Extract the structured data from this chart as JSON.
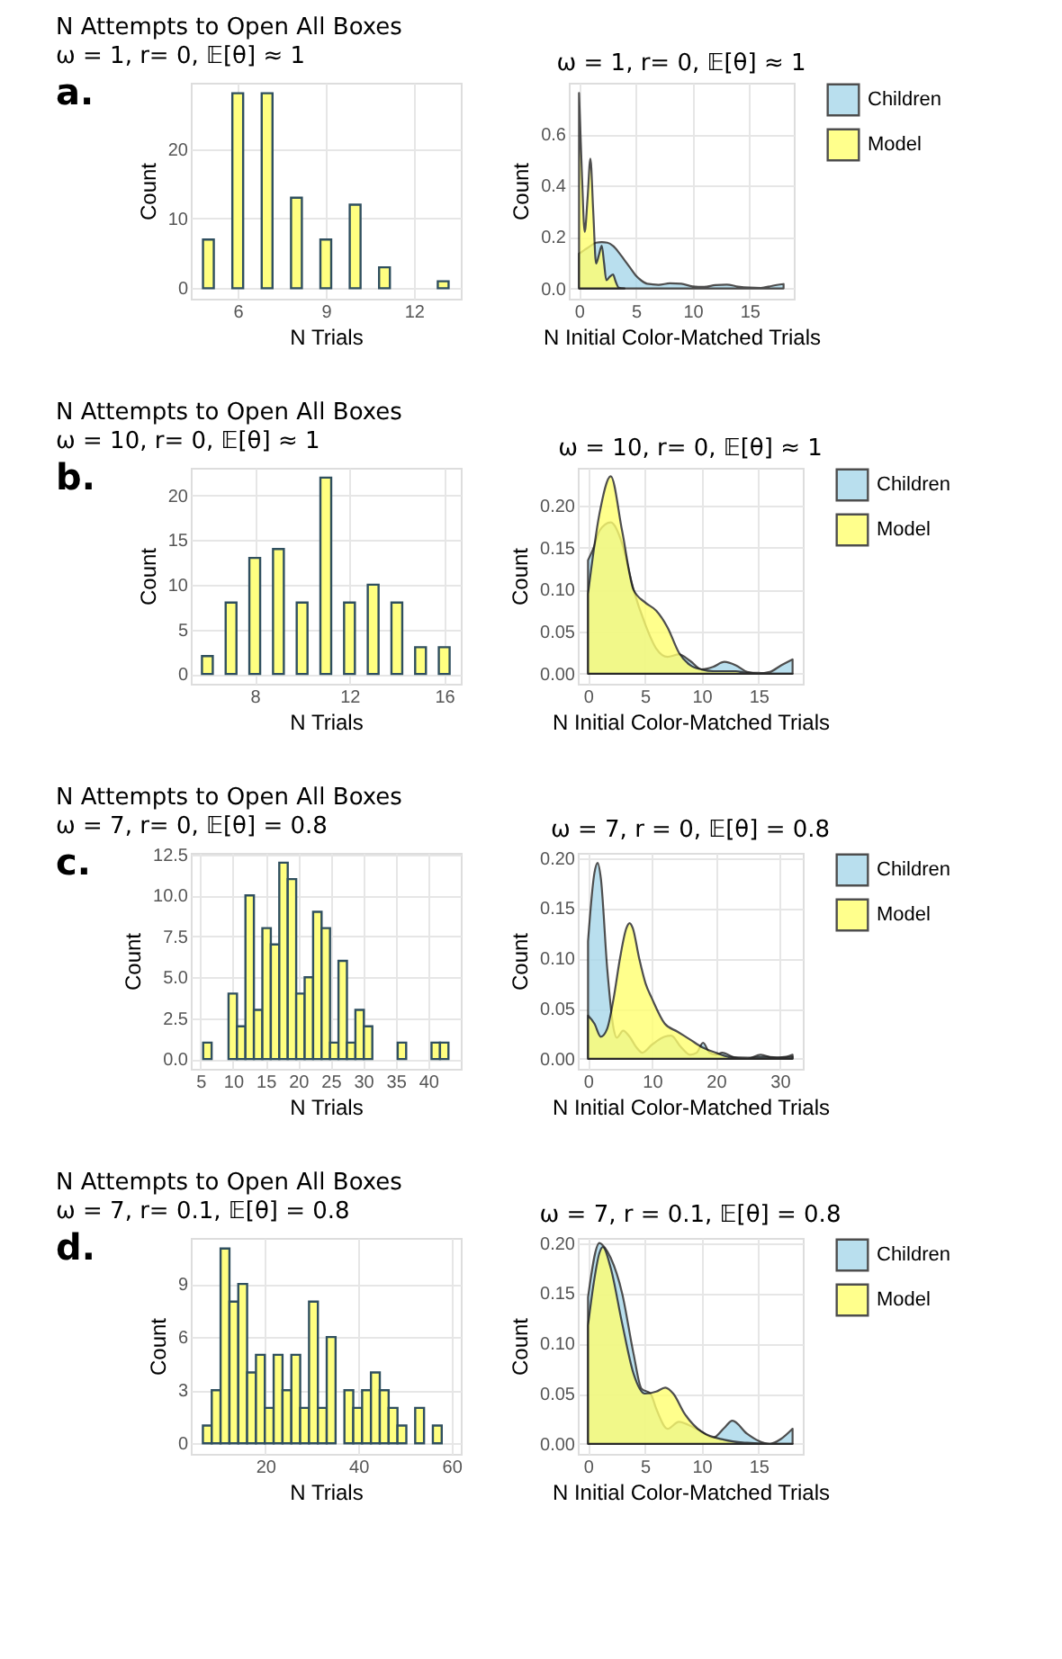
{
  "chart_data": [
    {
      "type": "bar",
      "title": "N Attempts to Open All Boxes",
      "subtitle": "ω = 1, r= 0, 𝔼[θ] ≈ 1",
      "xlabel": "N Trials",
      "ylabel": "Count",
      "annotations": [
        "a."
      ],
      "color": "#ffff80",
      "x": [
        5,
        6,
        7,
        8,
        9,
        10,
        11,
        13
      ],
      "values": [
        7,
        28,
        28,
        13,
        7,
        12,
        3,
        1
      ],
      "xlim": [
        4.4,
        13.6
      ],
      "xticks": [
        6,
        9,
        12
      ],
      "ylim": [
        -1.5,
        29.5
      ],
      "yticks": [
        0,
        10,
        20
      ],
      "grid": true
    },
    {
      "type": "area",
      "title": "ω = 1, r= 0, 𝔼[θ] ≈ 1",
      "xlabel": "N Initial Color-Matched Trials",
      "ylabel": "Count",
      "legend": "right",
      "grid": true,
      "xlim": [
        -0.9,
        18.9
      ],
      "xticks": [
        0,
        5,
        10,
        15
      ],
      "ylim": [
        -0.04,
        0.8
      ],
      "yticks": [
        {
          "value": 0,
          "label": "0.0"
        },
        0.2,
        0.4,
        0.6
      ],
      "series": [
        {
          "name": "Children",
          "color": "#a8d8ea",
          "x": [
            0,
            0.5,
            1,
            1.5,
            2,
            2.5,
            3,
            3.5,
            4,
            4.5,
            5,
            5.5,
            6,
            7,
            8,
            9,
            10,
            11,
            12,
            13,
            14,
            15,
            16,
            17,
            18
          ],
          "values": [
            0.135,
            0.15,
            0.165,
            0.178,
            0.18,
            0.178,
            0.165,
            0.14,
            0.11,
            0.08,
            0.05,
            0.03,
            0.018,
            0.014,
            0.02,
            0.018,
            0.008,
            0.006,
            0.013,
            0.015,
            0.007,
            0.003,
            0.002,
            0.01,
            0.017
          ]
        },
        {
          "name": "Model",
          "color": "#ffff70",
          "x": [
            0,
            0.25,
            0.5,
            0.75,
            1,
            1.25,
            1.5,
            1.75,
            2,
            2.2,
            2.4,
            2.7,
            3,
            3.2,
            3.5,
            4
          ],
          "values": [
            0.76,
            0.45,
            0.22,
            0.35,
            0.505,
            0.3,
            0.097,
            0.13,
            0.166,
            0.1,
            0.032,
            0.045,
            0.054,
            0.03,
            0.003,
            0
          ]
        }
      ]
    },
    {
      "type": "bar",
      "title": "N Attempts to Open All Boxes",
      "subtitle": "ω = 10, r= 0, 𝔼[θ] ≈ 1",
      "xlabel": "N Trials",
      "ylabel": "Count",
      "annotations": [
        "b."
      ],
      "color": "#ffff80",
      "x": [
        6,
        7,
        8,
        9,
        10,
        11,
        12,
        13,
        14,
        15,
        16
      ],
      "values": [
        2,
        8,
        13,
        14,
        8,
        22,
        8,
        10,
        8,
        3,
        3
      ],
      "xlim": [
        5.3,
        16.7
      ],
      "xticks": [
        8,
        12,
        16
      ],
      "ylim": [
        -1.1,
        23.1
      ],
      "yticks": [
        0,
        5,
        10,
        15,
        20
      ],
      "grid": true
    },
    {
      "type": "area",
      "title": "ω = 10, r= 0, 𝔼[θ] ≈ 1",
      "xlabel": "N Initial Color-Matched Trials",
      "ylabel": "Count",
      "legend": "right",
      "grid": true,
      "xlim": [
        -0.9,
        18.9
      ],
      "xticks": [
        0,
        5,
        10,
        15
      ],
      "ylim": [
        -0.012,
        0.245
      ],
      "yticks": [
        {
          "value": 0,
          "label": "0.00"
        },
        0.05,
        {
          "value": 0.1,
          "label": "0.10"
        },
        0.15,
        {
          "value": 0.2,
          "label": "0.20"
        }
      ],
      "series": [
        {
          "name": "Children",
          "color": "#a8d8ea",
          "x": [
            0,
            0.5,
            1,
            2,
            3,
            4,
            5,
            6,
            7,
            8,
            9,
            10,
            11,
            12,
            13,
            14,
            15,
            16,
            17,
            18
          ],
          "values": [
            0.135,
            0.15,
            0.17,
            0.18,
            0.155,
            0.1,
            0.06,
            0.03,
            0.02,
            0.023,
            0.015,
            0.005,
            0.008,
            0.014,
            0.01,
            0.002,
            0,
            0.002,
            0.01,
            0.017
          ]
        },
        {
          "name": "Model",
          "color": "#ffff70",
          "x": [
            0,
            1,
            2,
            3,
            4,
            5,
            6,
            7,
            8,
            9,
            10,
            11,
            12,
            13,
            14,
            15,
            16,
            17,
            18
          ],
          "values": [
            0.095,
            0.19,
            0.235,
            0.17,
            0.1,
            0.085,
            0.075,
            0.055,
            0.025,
            0.01,
            0.005,
            0.003,
            0.003,
            0.003,
            0.001,
            0.001,
            0,
            0,
            0
          ]
        }
      ]
    },
    {
      "type": "histogram",
      "title": "N Attempts to Open All Boxes",
      "subtitle": "ω = 7, r= 0, 𝔼[θ] = 0.8",
      "xlabel": "N Trials",
      "ylabel": "Count",
      "annotations": [
        "c."
      ],
      "color": "#ffff80",
      "bins": [
        5.4,
        6.7,
        8.0,
        9.3,
        10.6,
        11.9,
        13.2,
        14.5,
        15.8,
        17.1,
        18.4,
        19.7,
        21.0,
        22.3,
        23.6,
        24.9,
        26.2,
        27.5,
        28.8,
        30.1,
        31.4,
        32.7,
        34.0,
        35.3,
        36.6,
        37.9,
        39.2,
        40.5,
        41.8,
        43.1
      ],
      "values": [
        1,
        0,
        0,
        4,
        2,
        10,
        3,
        8,
        7,
        12,
        11,
        4,
        5,
        9,
        8,
        1,
        6,
        1,
        3,
        2,
        0,
        0,
        0,
        1,
        0,
        0,
        0,
        1,
        1
      ],
      "xlim": [
        3.5,
        45
      ],
      "xticks": [
        5,
        10,
        15,
        20,
        25,
        30,
        35,
        40
      ],
      "ylim": [
        -0.6,
        12.6
      ],
      "yticks": [
        {
          "value": 0,
          "label": "0.0"
        },
        2.5,
        {
          "value": 5,
          "label": "5.0"
        },
        7.5,
        {
          "value": 10,
          "label": "10.0"
        },
        12.5
      ],
      "grid": true
    },
    {
      "type": "area",
      "title": "ω = 7, r = 0, 𝔼[θ] = 0.8",
      "xlabel": "N Initial Color-Matched Trials",
      "ylabel": "Count",
      "legend": "right",
      "grid": true,
      "xlim": [
        -1.6,
        33.6
      ],
      "xticks": [
        0,
        10,
        20,
        30
      ],
      "ylim": [
        -0.01,
        0.205
      ],
      "yticks": [
        {
          "value": 0,
          "label": "0.00"
        },
        0.05,
        {
          "value": 0.1,
          "label": "0.10"
        },
        0.15,
        {
          "value": 0.2,
          "label": "0.20"
        }
      ],
      "series": [
        {
          "name": "Children",
          "color": "#a8d8ea",
          "x": [
            0,
            1,
            1.5,
            2,
            3,
            4,
            4.5,
            5.5,
            6.5,
            7.5,
            8.5,
            10,
            12,
            13,
            14.5,
            16,
            17,
            18,
            19,
            20,
            21,
            23,
            25,
            27,
            29,
            31,
            32
          ],
          "values": [
            0.117,
            0.185,
            0.195,
            0.18,
            0.09,
            0.03,
            0.021,
            0.028,
            0.022,
            0.012,
            0.006,
            0.014,
            0.022,
            0.023,
            0.012,
            0.004,
            0.006,
            0.016,
            0.006,
            0.004,
            0.006,
            0.001,
            0,
            0.004,
            0.001,
            0.002,
            0.004
          ]
        },
        {
          "name": "Model",
          "color": "#ffff70",
          "x": [
            0,
            1,
            2,
            3,
            4,
            5,
            6,
            6.5,
            7,
            8,
            9,
            10,
            12,
            14,
            16,
            18,
            20,
            22,
            25,
            28,
            30,
            32
          ],
          "values": [
            0.043,
            0.035,
            0.022,
            0.03,
            0.06,
            0.1,
            0.13,
            0.135,
            0.13,
            0.1,
            0.075,
            0.06,
            0.035,
            0.027,
            0.019,
            0.011,
            0.006,
            0.002,
            0.001,
            0.002,
            0.001,
            0.002
          ]
        }
      ]
    },
    {
      "type": "histogram",
      "title": "N Attempts to Open All Boxes",
      "subtitle": "ω = 7, r= 0.1, 𝔼[θ] = 0.8",
      "xlabel": "N Trials",
      "ylabel": "Count",
      "annotations": [
        "d."
      ],
      "color": "#ffff80",
      "bins": [
        6.6,
        8.5,
        10.4,
        12.3,
        14.2,
        16.1,
        18.0,
        19.9,
        21.8,
        23.7,
        25.6,
        27.5,
        29.4,
        31.3,
        33.2,
        35.1,
        37.0,
        38.9,
        40.8,
        42.7,
        44.6,
        46.5,
        48.4,
        50.3,
        52.2,
        54.1,
        56.0,
        57.9
      ],
      "values": [
        1,
        3,
        11,
        8,
        9,
        4,
        5,
        2,
        5,
        3,
        5,
        2,
        8,
        2,
        6,
        0,
        3,
        2,
        3,
        4,
        3,
        2,
        1,
        0,
        2,
        0,
        1
      ],
      "xlim": [
        4,
        62
      ],
      "xticks": [
        20,
        40,
        60
      ],
      "ylim": [
        -0.6,
        11.6
      ],
      "yticks": [
        0,
        3,
        6,
        9
      ],
      "grid": true
    },
    {
      "type": "area",
      "title": "ω = 7, r = 0.1, 𝔼[θ] = 0.8",
      "xlabel": "N Initial Color-Matched Trials",
      "ylabel": "Count",
      "legend": "right",
      "grid": true,
      "xlim": [
        -0.9,
        18.9
      ],
      "xticks": [
        0,
        5,
        10,
        15
      ],
      "ylim": [
        -0.01,
        0.205
      ],
      "yticks": [
        {
          "value": 0,
          "label": "0.00"
        },
        0.05,
        {
          "value": 0.1,
          "label": "0.10"
        },
        0.15,
        {
          "value": 0.2,
          "label": "0.20"
        }
      ],
      "series": [
        {
          "name": "Children",
          "color": "#a8d8ea",
          "x": [
            0,
            1,
            1.5,
            2,
            3,
            4,
            4.7,
            5.5,
            6,
            7,
            8,
            9,
            10,
            11,
            12,
            12.7,
            14,
            15,
            16,
            17,
            18
          ],
          "values": [
            0.146,
            0.2,
            0.195,
            0.185,
            0.15,
            0.09,
            0.055,
            0.05,
            0.035,
            0.015,
            0.022,
            0.018,
            0.012,
            0.006,
            0.016,
            0.023,
            0.01,
            0.003,
            0,
            0.005,
            0.015
          ]
        },
        {
          "name": "Model",
          "color": "#ffff70",
          "x": [
            0,
            0.5,
            1,
            1.3,
            2,
            3,
            4,
            5,
            6,
            6.8,
            7.5,
            8.5,
            10,
            12,
            14,
            16,
            18
          ],
          "values": [
            0.118,
            0.16,
            0.19,
            0.196,
            0.175,
            0.12,
            0.07,
            0.05,
            0.052,
            0.056,
            0.05,
            0.03,
            0.012,
            0.004,
            0.001,
            0,
            0
          ]
        }
      ]
    }
  ]
}
